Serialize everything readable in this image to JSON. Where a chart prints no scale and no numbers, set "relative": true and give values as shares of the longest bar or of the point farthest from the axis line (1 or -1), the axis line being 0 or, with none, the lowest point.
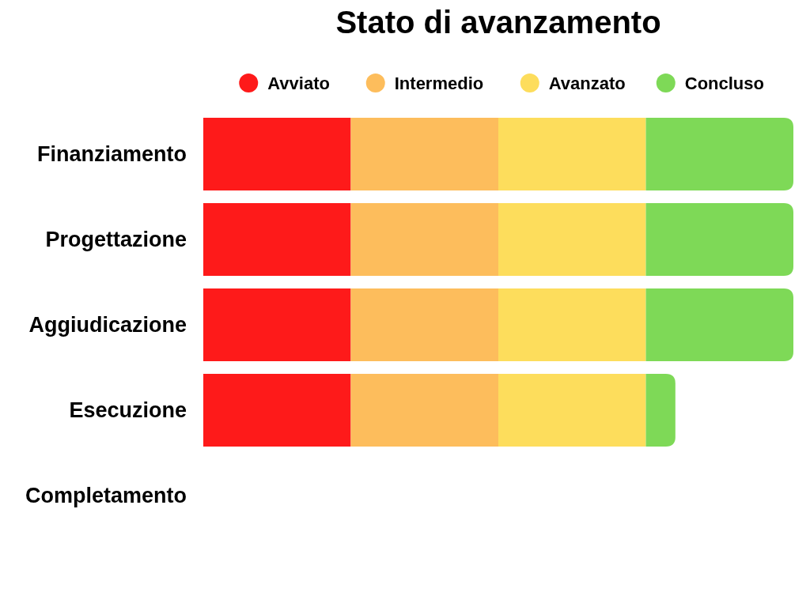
{
  "chart_data": {
    "type": "bar",
    "title": "Stato di avanzamento",
    "orientation": "horizontal",
    "stacked": true,
    "relative": true,
    "legend": "top",
    "categories": [
      "Finanziamento",
      "Progettazione",
      "Aggiudicazione",
      "Esecuzione",
      "Completamento"
    ],
    "series": [
      {
        "name": "Avviato",
        "color": "#fe1a1a",
        "values": [
          0.25,
          0.25,
          0.25,
          0.25,
          0
        ]
      },
      {
        "name": "Intermedio",
        "color": "#fdbd5c",
        "values": [
          0.25,
          0.25,
          0.25,
          0.25,
          0
        ]
      },
      {
        "name": "Avanzato",
        "color": "#fddd5c",
        "values": [
          0.25,
          0.25,
          0.25,
          0.25,
          0
        ]
      },
      {
        "name": "Concluso",
        "color": "#7ed957",
        "values": [
          0.25,
          0.25,
          0.25,
          0.05,
          0
        ]
      }
    ]
  }
}
